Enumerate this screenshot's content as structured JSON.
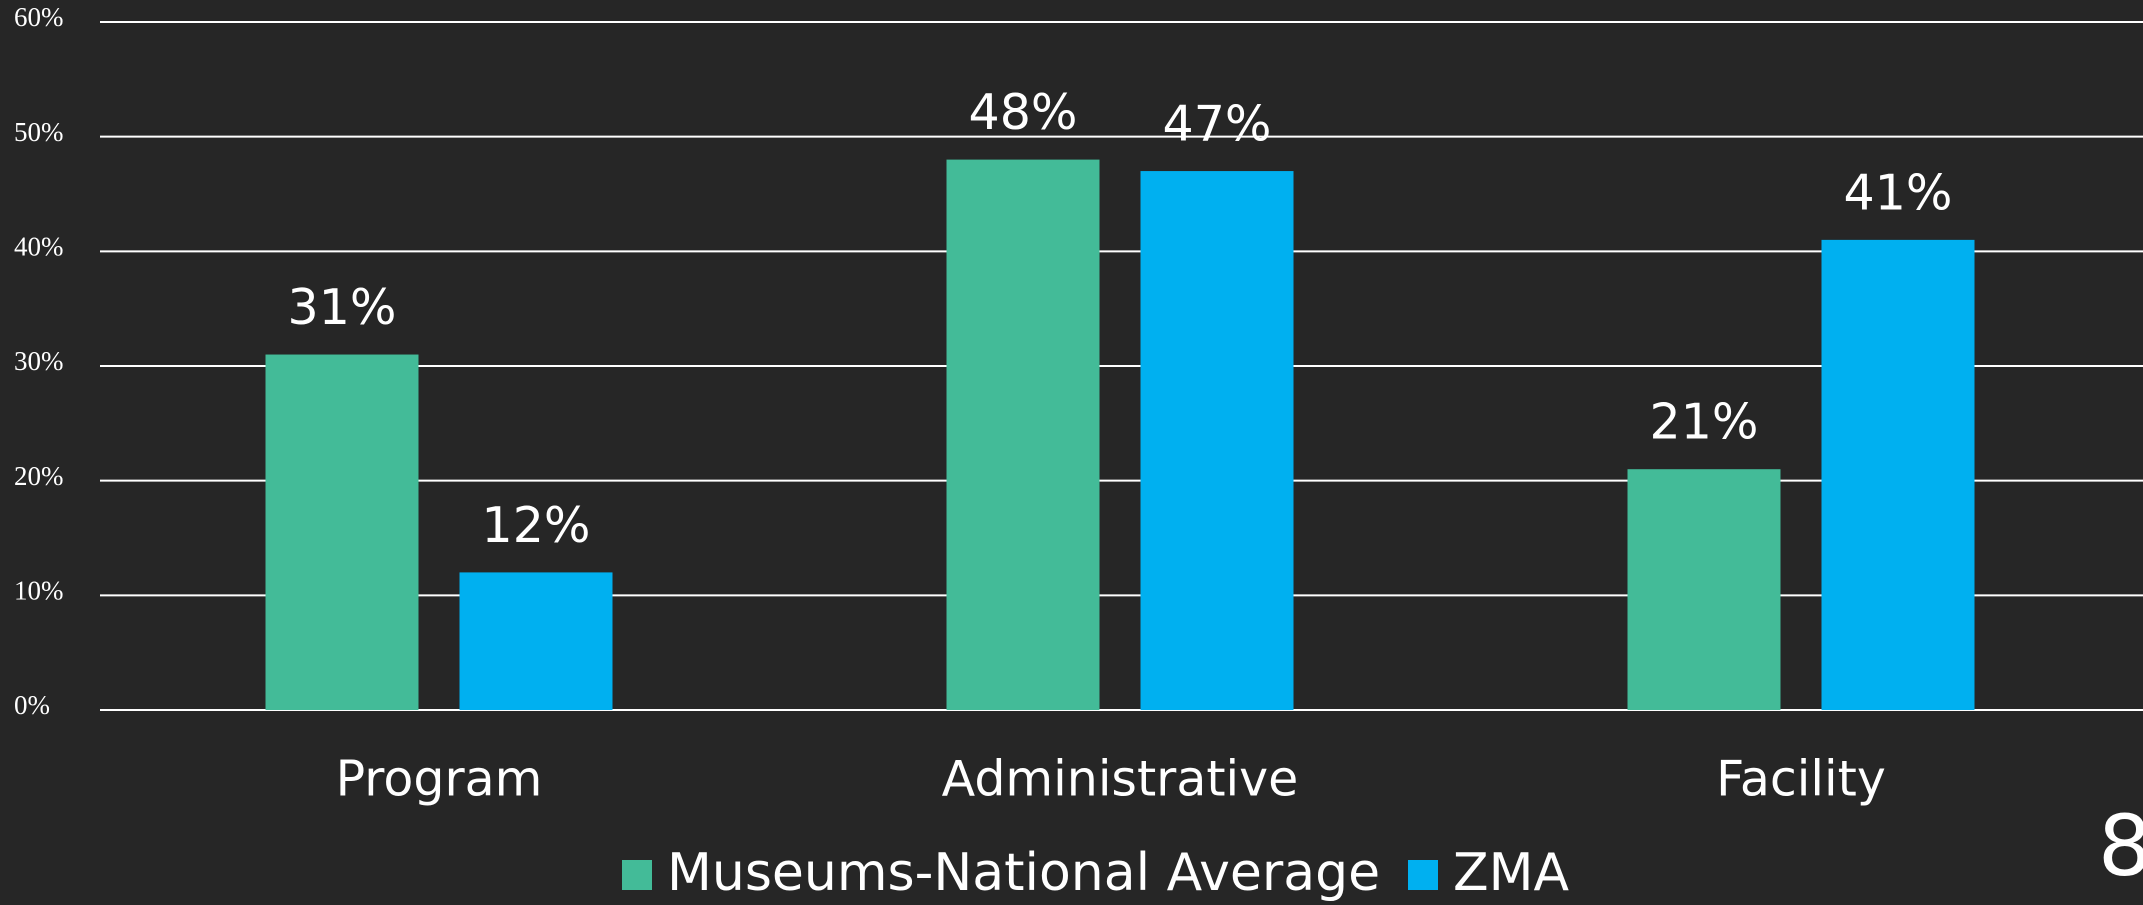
{
  "chart_data": {
    "type": "bar",
    "categories": [
      "Program",
      "Administrative",
      "Facility"
    ],
    "series": [
      {
        "name": "Museums-National Average",
        "color": "#43bb98",
        "values": [
          31,
          48,
          21
        ],
        "value_labels": [
          "31%",
          "48%",
          "21%"
        ]
      },
      {
        "name": "ZMA",
        "color": "#00b0f0",
        "values": [
          12,
          47,
          41
        ],
        "value_labels": [
          "12%",
          "47%",
          "41%"
        ]
      }
    ],
    "ylim": [
      0,
      60
    ],
    "yticks": [
      {
        "value": 0,
        "label": "0%"
      },
      {
        "value": 10,
        "label": "10%"
      },
      {
        "value": 20,
        "label": "20%"
      },
      {
        "value": 30,
        "label": "30%"
      },
      {
        "value": 40,
        "label": "40%"
      },
      {
        "value": 50,
        "label": "50%"
      },
      {
        "value": 60,
        "label": "60%"
      }
    ],
    "grid": true,
    "legend": "bottom",
    "page_number": "8"
  }
}
